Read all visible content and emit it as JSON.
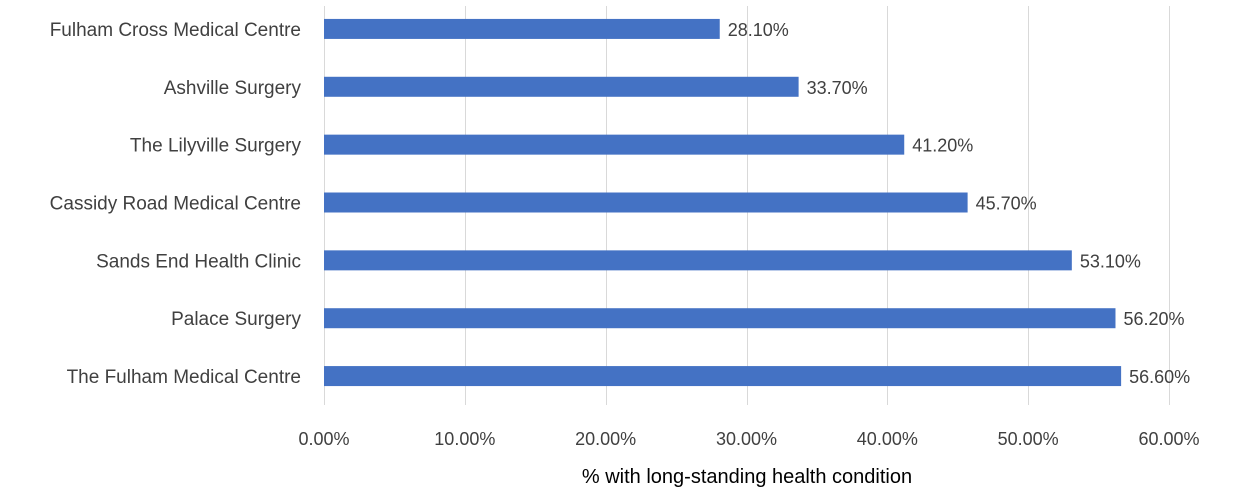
{
  "chart_data": {
    "type": "bar",
    "orientation": "horizontal",
    "categories": [
      "Fulham Cross Medical Centre",
      "Ashville Surgery",
      "The Lilyville Surgery",
      "Cassidy Road Medical Centre",
      "Sands End Health Clinic",
      "Palace Surgery",
      "The Fulham Medical Centre"
    ],
    "values": [
      28.1,
      33.7,
      41.2,
      45.7,
      53.1,
      56.2,
      56.6
    ],
    "data_labels": [
      "28.10%",
      "33.70%",
      "41.20%",
      "45.70%",
      "53.10%",
      "56.20%",
      "56.60%"
    ],
    "xlabel": "% with long-standing health condition",
    "ylabel": "",
    "xlim": [
      0,
      60
    ],
    "x_ticks": [
      0,
      10,
      20,
      30,
      40,
      50,
      60
    ],
    "x_tick_labels": [
      "0.00%",
      "10.00%",
      "20.00%",
      "30.00%",
      "40.00%",
      "50.00%",
      "60.00%"
    ],
    "grid": "vertical",
    "legend": "none",
    "bar_color": "#4472c4"
  }
}
